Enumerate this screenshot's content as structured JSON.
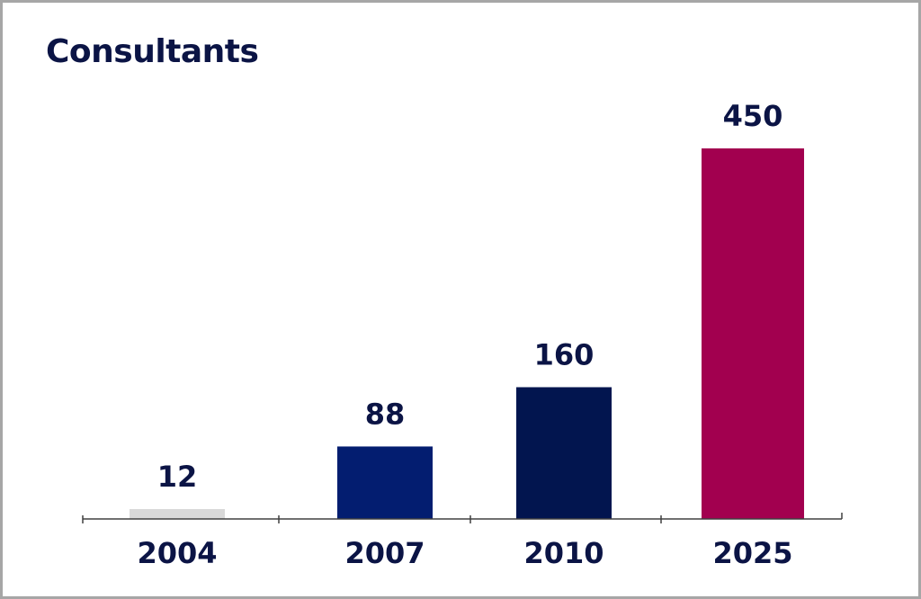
{
  "chart_data": {
    "type": "bar",
    "title": "Consultants",
    "categories": [
      "2004",
      "2007",
      "2010",
      "2025"
    ],
    "values": [
      12,
      88,
      160,
      450
    ],
    "ylim": [
      0,
      450
    ],
    "xlabel": "",
    "ylabel": "",
    "grid": false,
    "legend": "none",
    "data_labels": true,
    "bar_colors": [
      "#d9d9d9",
      "#031d70",
      "#02154f",
      "#a2004f"
    ],
    "text_color": "#0b1445",
    "axis_color": "#404040"
  }
}
